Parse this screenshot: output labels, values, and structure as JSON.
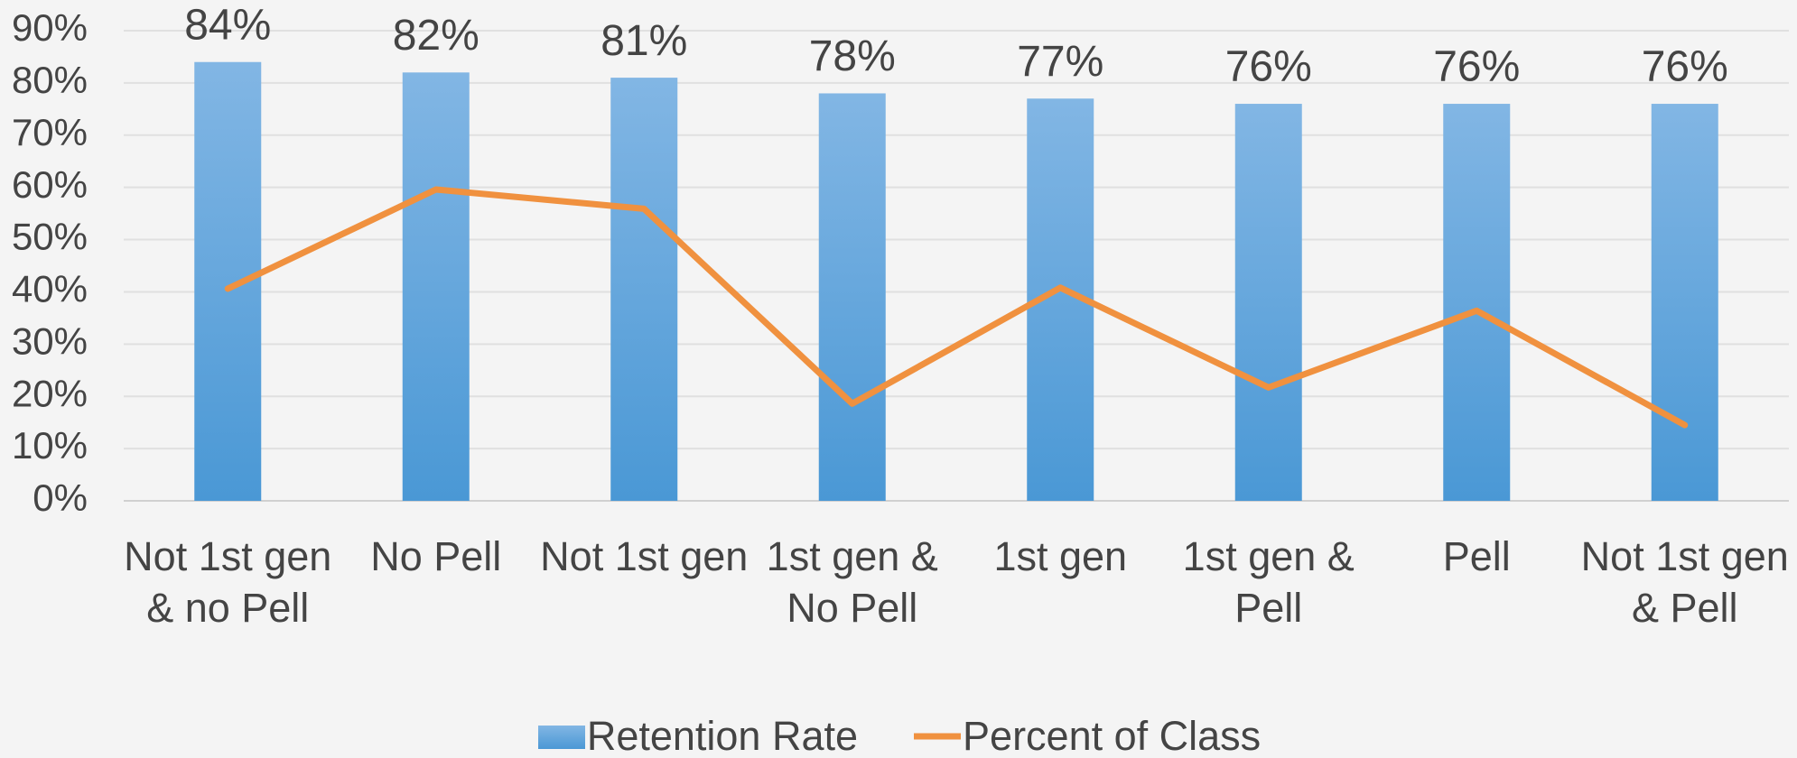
{
  "chart_data": {
    "type": "bar",
    "categories": [
      "Not 1st gen & no Pell",
      "No Pell",
      "Not 1st gen",
      "1st gen & No Pell",
      "1st gen",
      "1st gen & Pell",
      "Pell",
      "Not 1st gen & Pell"
    ],
    "series": [
      {
        "name": "Retention Rate",
        "type": "bar",
        "color": "#5ea5dd",
        "values": [
          84,
          82,
          81,
          78,
          77,
          76,
          76,
          76
        ],
        "value_labels": [
          "84%",
          "82%",
          "81%",
          "78%",
          "77%",
          "76%",
          "76%",
          "76%"
        ]
      },
      {
        "name": "Percent of Class",
        "type": "line",
        "color": "#f0913f",
        "values": [
          40.6,
          59.6,
          55.9,
          18.6,
          40.8,
          21.7,
          36.4,
          14.5
        ]
      }
    ],
    "ylim": [
      0,
      90
    ],
    "yticks": [
      {
        "value": 0,
        "label": "0%"
      },
      {
        "value": 10,
        "label": "10%"
      },
      {
        "value": 20,
        "label": "20%"
      },
      {
        "value": 30,
        "label": "30%"
      },
      {
        "value": 40,
        "label": "40%"
      },
      {
        "value": 50,
        "label": "50%"
      },
      {
        "value": 60,
        "label": "60%"
      },
      {
        "value": 70,
        "label": "70%"
      },
      {
        "value": 80,
        "label": "80%"
      },
      {
        "value": 90,
        "label": "90%"
      }
    ],
    "grid": true,
    "legend": "bottom"
  }
}
